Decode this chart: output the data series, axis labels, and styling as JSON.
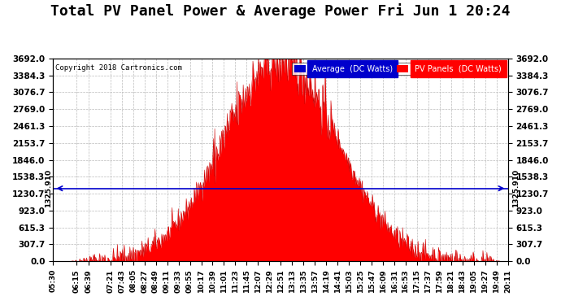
{
  "title": "Total PV Panel Power & Average Power Fri Jun 1 20:24",
  "copyright": "Copyright 2018 Cartronics.com",
  "legend_avg": "Average  (DC Watts)",
  "legend_pv": "PV Panels  (DC Watts)",
  "avg_line_value": 1325.91,
  "avg_line_label": "1325.910",
  "ymax": 3692.0,
  "yticks": [
    0.0,
    307.7,
    615.3,
    923.0,
    1230.7,
    1538.3,
    1846.0,
    2153.7,
    2461.3,
    2769.0,
    3076.7,
    3384.3,
    3692.0
  ],
  "background_color": "#ffffff",
  "fill_color": "#ff0000",
  "line_color": "#cc0000",
  "avg_line_color": "#0000cc",
  "grid_color": "#bbbbbb",
  "title_fontsize": 13,
  "tick_fontsize": 7.5,
  "time_labels": [
    "05:30",
    "06:15",
    "06:39",
    "07:21",
    "07:43",
    "08:05",
    "08:27",
    "08:49",
    "09:11",
    "09:33",
    "09:55",
    "10:17",
    "10:39",
    "11:01",
    "11:23",
    "11:45",
    "12:07",
    "12:29",
    "12:51",
    "13:13",
    "13:35",
    "13:57",
    "14:19",
    "14:41",
    "15:03",
    "15:25",
    "15:47",
    "16:09",
    "16:31",
    "16:53",
    "17:15",
    "17:37",
    "17:59",
    "18:21",
    "18:43",
    "19:05",
    "19:27",
    "19:49",
    "20:11"
  ]
}
